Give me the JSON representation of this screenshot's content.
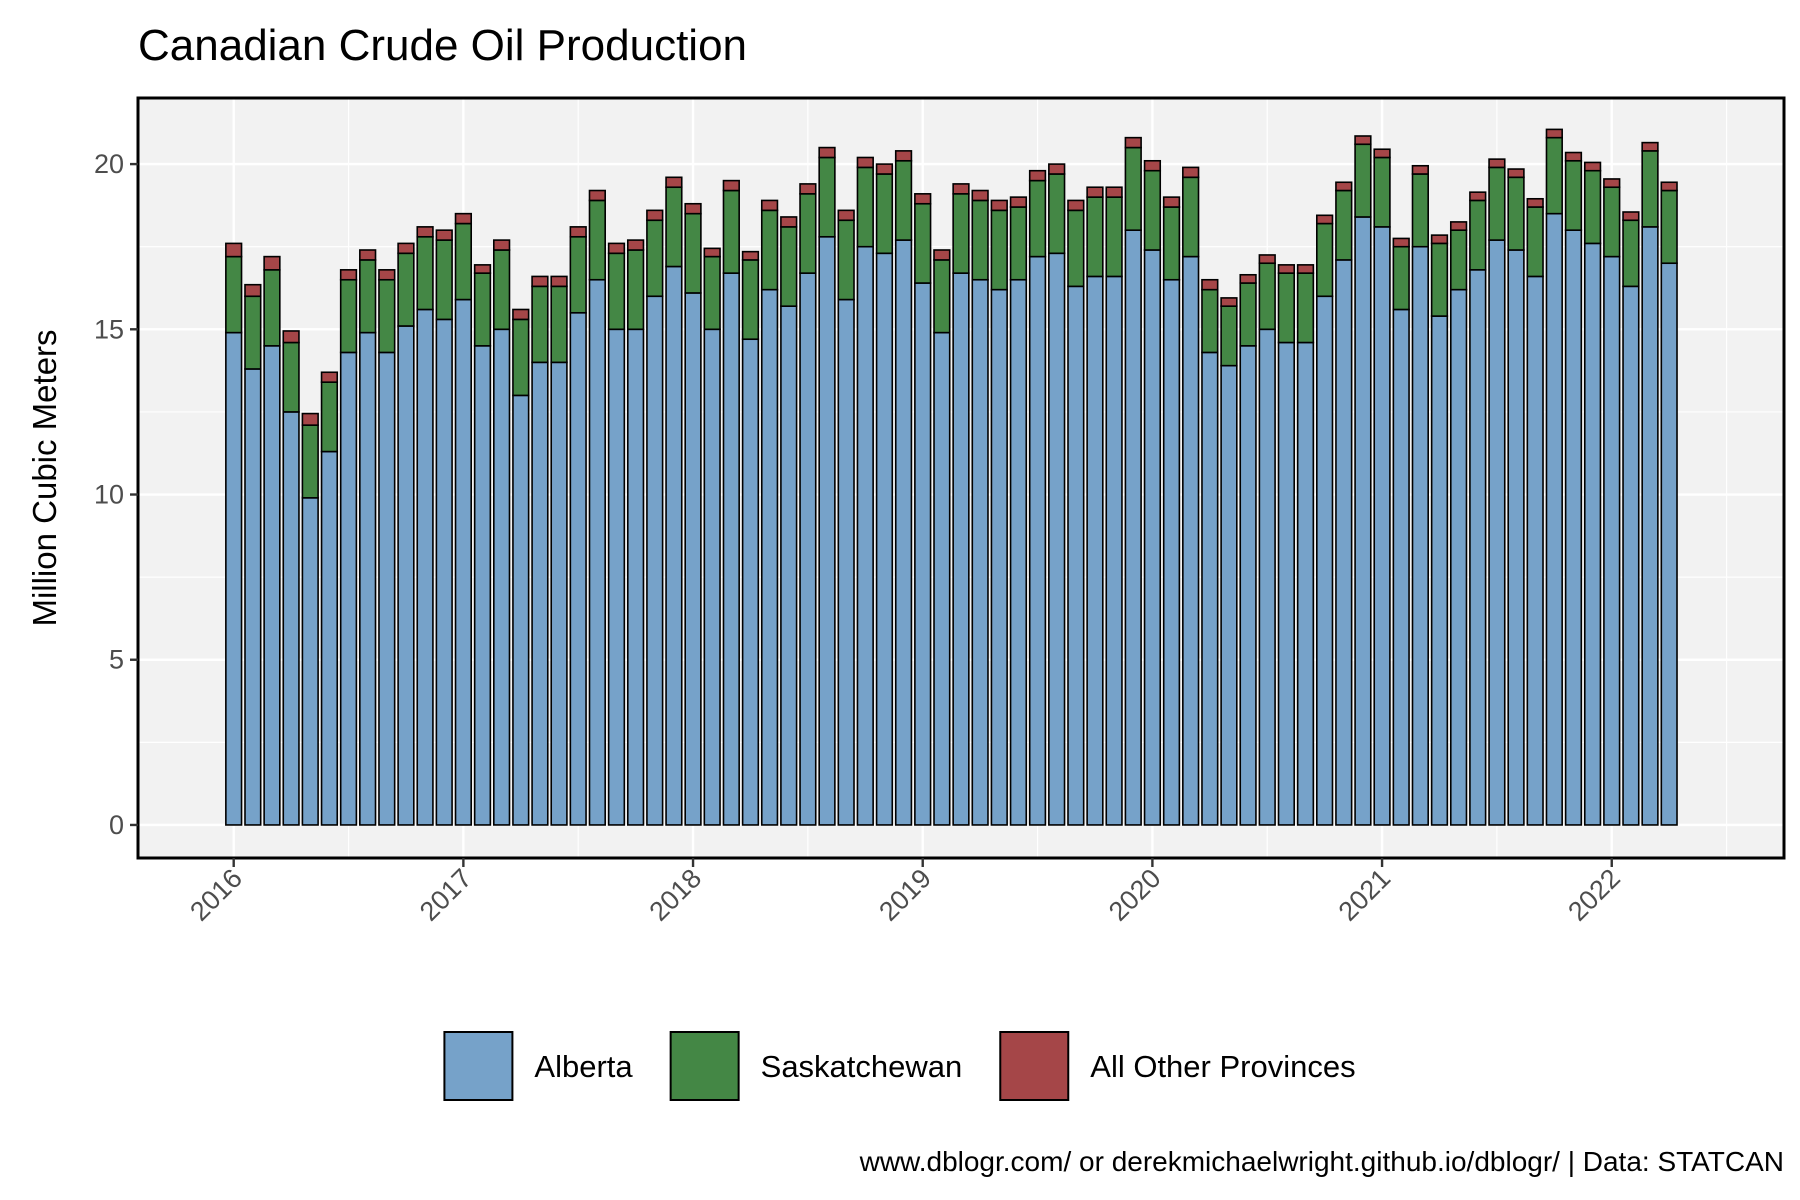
{
  "chart_data": {
    "type": "bar",
    "stacked": true,
    "title": "Canadian Crude Oil Production",
    "xlabel": "",
    "ylabel": "Million Cubic Meters",
    "caption": "www.dblogr.com/ or derekmichaelwright.github.io/dblogr/ | Data: STATCAN",
    "grid": true,
    "legend_position": "bottom",
    "x_start": "2016-01",
    "x_ticks": [
      "2016",
      "2017",
      "2018",
      "2019",
      "2020",
      "2021",
      "2022"
    ],
    "xlim": [
      "2015-08",
      "2022-10"
    ],
    "y_ticks": [
      0,
      5,
      10,
      15,
      20
    ],
    "ylim": [
      -1,
      22
    ],
    "series": [
      {
        "name": "Alberta",
        "color": "#76a2c9",
        "values": [
          14.9,
          13.8,
          14.5,
          12.5,
          9.9,
          11.3,
          14.3,
          14.9,
          14.3,
          15.1,
          15.6,
          15.3,
          15.9,
          14.5,
          15.0,
          13.0,
          14.0,
          14.0,
          15.5,
          16.5,
          15.0,
          15.0,
          16.0,
          16.9,
          16.1,
          15.0,
          16.7,
          14.7,
          16.2,
          15.7,
          16.7,
          17.8,
          15.9,
          17.5,
          17.3,
          17.7,
          16.4,
          14.9,
          16.7,
          16.5,
          16.2,
          16.5,
          17.2,
          17.3,
          16.3,
          16.6,
          16.6,
          18.0,
          17.4,
          16.5,
          17.2,
          14.3,
          13.9,
          14.5,
          15.0,
          14.6,
          14.6,
          16.0,
          17.1,
          18.4,
          18.1,
          15.6,
          17.5,
          15.4,
          16.2,
          16.8,
          17.7,
          17.4,
          16.6,
          18.5,
          18.0,
          17.6,
          17.2,
          16.3,
          18.1,
          17.0
        ]
      },
      {
        "name": "Saskatchewan",
        "color": "#448745",
        "values": [
          2.3,
          2.2,
          2.3,
          2.1,
          2.2,
          2.1,
          2.2,
          2.2,
          2.2,
          2.2,
          2.2,
          2.4,
          2.3,
          2.2,
          2.4,
          2.3,
          2.3,
          2.3,
          2.3,
          2.4,
          2.3,
          2.4,
          2.3,
          2.4,
          2.4,
          2.2,
          2.5,
          2.4,
          2.4,
          2.4,
          2.4,
          2.4,
          2.4,
          2.4,
          2.4,
          2.4,
          2.4,
          2.2,
          2.4,
          2.4,
          2.4,
          2.2,
          2.3,
          2.4,
          2.3,
          2.4,
          2.4,
          2.5,
          2.4,
          2.2,
          2.4,
          1.9,
          1.8,
          1.9,
          2.0,
          2.1,
          2.1,
          2.2,
          2.1,
          2.2,
          2.1,
          1.9,
          2.2,
          2.2,
          1.8,
          2.1,
          2.2,
          2.2,
          2.1,
          2.3,
          2.1,
          2.2,
          2.1,
          2.0,
          2.3,
          2.2
        ]
      },
      {
        "name": "All Other Provinces",
        "color": "#a54648",
        "values": [
          0.4,
          0.35,
          0.4,
          0.35,
          0.35,
          0.3,
          0.3,
          0.3,
          0.3,
          0.3,
          0.3,
          0.3,
          0.3,
          0.25,
          0.3,
          0.3,
          0.3,
          0.3,
          0.3,
          0.3,
          0.3,
          0.3,
          0.3,
          0.3,
          0.3,
          0.25,
          0.3,
          0.25,
          0.3,
          0.3,
          0.3,
          0.3,
          0.3,
          0.3,
          0.3,
          0.3,
          0.3,
          0.3,
          0.3,
          0.3,
          0.3,
          0.3,
          0.3,
          0.3,
          0.3,
          0.3,
          0.3,
          0.3,
          0.3,
          0.3,
          0.3,
          0.3,
          0.25,
          0.25,
          0.25,
          0.25,
          0.25,
          0.25,
          0.25,
          0.25,
          0.25,
          0.25,
          0.25,
          0.25,
          0.25,
          0.25,
          0.25,
          0.25,
          0.25,
          0.25,
          0.25,
          0.25,
          0.25,
          0.25,
          0.25,
          0.25
        ]
      }
    ]
  }
}
